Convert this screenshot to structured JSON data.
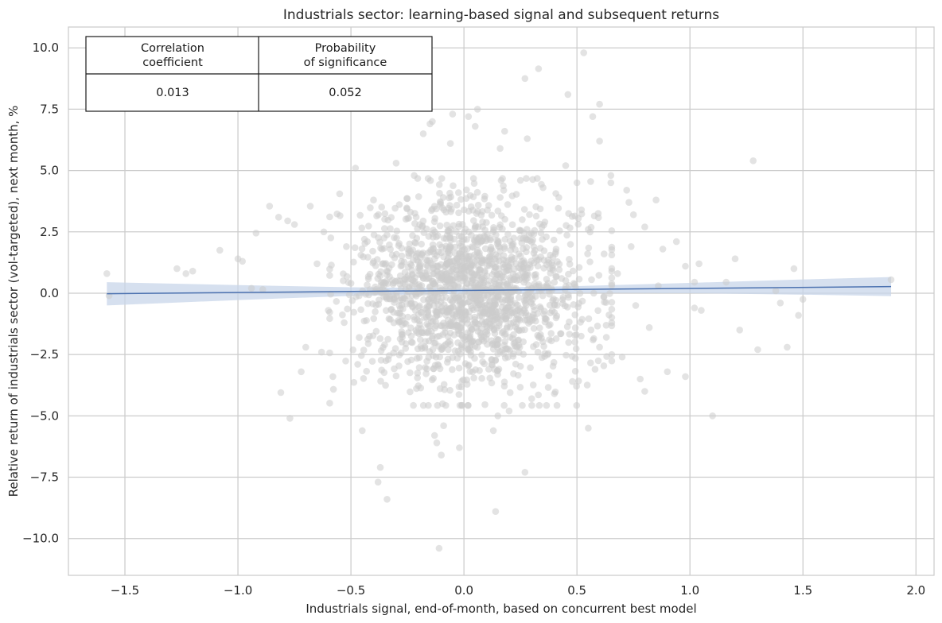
{
  "chart_data": {
    "type": "scatter",
    "title": "Industrials sector: learning-based signal and subsequent returns",
    "xlabel": "Industrials signal, end-of-month, based on concurrent best model",
    "ylabel": "Relative return of industrials sector (vol-targeted), next month, %",
    "xlim": [
      -1.75,
      2.08
    ],
    "ylim": [
      -11.5,
      10.85
    ],
    "x_ticks": [
      -1.5,
      -1.0,
      -0.5,
      0.0,
      0.5,
      1.0,
      1.5,
      2.0
    ],
    "x_tick_labels": [
      "−1.5",
      "−1.0",
      "−0.5",
      "0.0",
      "0.5",
      "1.0",
      "1.5",
      "2.0"
    ],
    "y_ticks": [
      -10.0,
      -7.5,
      -5.0,
      -2.5,
      0.0,
      2.5,
      5.0,
      7.5,
      10.0
    ],
    "y_tick_labels": [
      "−10.0",
      "−7.5",
      "−5.0",
      "−2.5",
      "0.0",
      "2.5",
      "5.0",
      "7.5",
      "10.0"
    ],
    "grid": true,
    "scatter_color": "#cccccc",
    "points": [
      [
        -1.58,
        0.8
      ],
      [
        -1.57,
        -0.1
      ],
      [
        -1.27,
        1.0
      ],
      [
        -1.23,
        0.8
      ],
      [
        -1.2,
        0.9
      ],
      [
        -1.08,
        1.75
      ],
      [
        -1.0,
        1.4
      ],
      [
        -0.98,
        1.3
      ],
      [
        -0.94,
        0.2
      ],
      [
        -0.92,
        2.45
      ],
      [
        -0.89,
        0.15
      ],
      [
        -0.86,
        3.55
      ],
      [
        -0.82,
        3.1
      ],
      [
        -0.78,
        2.95
      ],
      [
        -0.77,
        -5.1
      ],
      [
        -0.75,
        2.8
      ],
      [
        -0.72,
        -3.2
      ],
      [
        -0.68,
        3.55
      ],
      [
        -0.81,
        -4.05
      ],
      [
        -0.7,
        -2.2
      ],
      [
        -0.55,
        4.05
      ],
      [
        -0.48,
        5.1
      ],
      [
        -0.45,
        -5.6
      ],
      [
        -0.4,
        3.8
      ],
      [
        -0.38,
        -7.7
      ],
      [
        -0.37,
        -7.1
      ],
      [
        -0.34,
        -8.4
      ],
      [
        -0.3,
        5.3
      ],
      [
        -0.22,
        4.8
      ],
      [
        -0.18,
        6.5
      ],
      [
        -0.15,
        6.9
      ],
      [
        -0.14,
        7.0
      ],
      [
        -0.13,
        -5.8
      ],
      [
        -0.12,
        -6.1
      ],
      [
        -0.11,
        -10.4
      ],
      [
        -0.1,
        -6.6
      ],
      [
        -0.09,
        -5.4
      ],
      [
        -0.06,
        6.1
      ],
      [
        -0.05,
        7.3
      ],
      [
        0.05,
        6.8
      ],
      [
        0.06,
        7.5
      ],
      [
        0.02,
        7.2
      ],
      [
        -0.02,
        -6.3
      ],
      [
        0.16,
        5.9
      ],
      [
        0.18,
        6.6
      ],
      [
        0.13,
        -5.6
      ],
      [
        0.15,
        -5.0
      ],
      [
        0.2,
        -4.8
      ],
      [
        0.14,
        -8.9
      ],
      [
        0.27,
        8.75
      ],
      [
        0.33,
        9.15
      ],
      [
        0.28,
        6.3
      ],
      [
        0.27,
        -7.3
      ],
      [
        0.45,
        5.2
      ],
      [
        0.46,
        8.1
      ],
      [
        0.5,
        4.5
      ],
      [
        0.53,
        9.8
      ],
      [
        0.57,
        7.2
      ],
      [
        0.6,
        7.7
      ],
      [
        0.6,
        6.2
      ],
      [
        0.55,
        -5.5
      ],
      [
        0.65,
        4.5
      ],
      [
        0.65,
        4.8
      ],
      [
        0.72,
        4.2
      ],
      [
        0.73,
        3.7
      ],
      [
        0.75,
        3.2
      ],
      [
        0.78,
        -3.5
      ],
      [
        0.85,
        3.8
      ],
      [
        0.8,
        -4.0
      ],
      [
        0.94,
        2.1
      ],
      [
        0.9,
        -3.2
      ],
      [
        0.98,
        1.1
      ],
      [
        0.98,
        -3.4
      ],
      [
        1.02,
        0.45
      ],
      [
        1.02,
        -0.6
      ],
      [
        1.05,
        -0.7
      ],
      [
        1.04,
        1.2
      ],
      [
        1.1,
        -5.0
      ],
      [
        1.16,
        0.45
      ],
      [
        1.2,
        1.4
      ],
      [
        1.22,
        -1.5
      ],
      [
        1.28,
        5.4
      ],
      [
        1.3,
        -2.3
      ],
      [
        1.38,
        0.1
      ],
      [
        1.4,
        -0.4
      ],
      [
        1.43,
        -2.2
      ],
      [
        1.46,
        1.0
      ],
      [
        1.48,
        -0.9
      ],
      [
        1.5,
        -0.25
      ],
      [
        1.89,
        0.55
      ],
      [
        -0.62,
        2.5
      ],
      [
        -0.65,
        1.2
      ],
      [
        -0.6,
        -0.7
      ],
      [
        -0.63,
        -2.4
      ],
      [
        -0.58,
        -3.4
      ],
      [
        -0.52,
        1.9
      ],
      [
        -0.53,
        -1.2
      ],
      [
        -0.5,
        0.4
      ],
      [
        -0.47,
        -2.9
      ],
      [
        -0.44,
        2.2
      ],
      [
        0.62,
        1.6
      ],
      [
        0.63,
        -1.8
      ],
      [
        0.68,
        0.8
      ],
      [
        0.7,
        -2.6
      ],
      [
        0.74,
        1.9
      ],
      [
        0.76,
        -0.5
      ],
      [
        0.8,
        2.7
      ],
      [
        0.82,
        -1.4
      ],
      [
        0.86,
        0.3
      ],
      [
        0.88,
        1.8
      ],
      [
        0.55,
        2.6
      ],
      [
        0.58,
        -3.1
      ],
      [
        0.6,
        -2.2
      ],
      [
        0.52,
        3.4
      ],
      [
        0.48,
        -3.6
      ],
      [
        0.42,
        3.9
      ],
      [
        0.4,
        -4.1
      ],
      [
        0.35,
        4.3
      ],
      [
        0.3,
        -4.3
      ],
      [
        0.25,
        4.6
      ]
    ],
    "cluster": {
      "n": 1700,
      "center": [
        0.03,
        0.05
      ],
      "sd": [
        0.26,
        1.85
      ],
      "seed": 7
    },
    "regression_line": {
      "x": [
        -1.58,
        1.89
      ],
      "y": [
        -0.02,
        0.27
      ],
      "color": "#4c72b0"
    },
    "confidence_band": {
      "x": [
        -1.58,
        -1.0,
        -0.5,
        0.0,
        0.5,
        1.0,
        1.5,
        1.89
      ],
      "lower": [
        -0.5,
        -0.28,
        -0.11,
        -0.02,
        0.02,
        0.0,
        -0.06,
        -0.12
      ],
      "upper": [
        0.45,
        0.33,
        0.24,
        0.21,
        0.29,
        0.42,
        0.56,
        0.66
      ],
      "color": "#c8d5ea"
    },
    "table": {
      "headers": [
        [
          "Correlation",
          "coefficient"
        ],
        [
          "Probability",
          "of significance"
        ]
      ],
      "values": [
        "0.013",
        "0.052"
      ]
    }
  }
}
